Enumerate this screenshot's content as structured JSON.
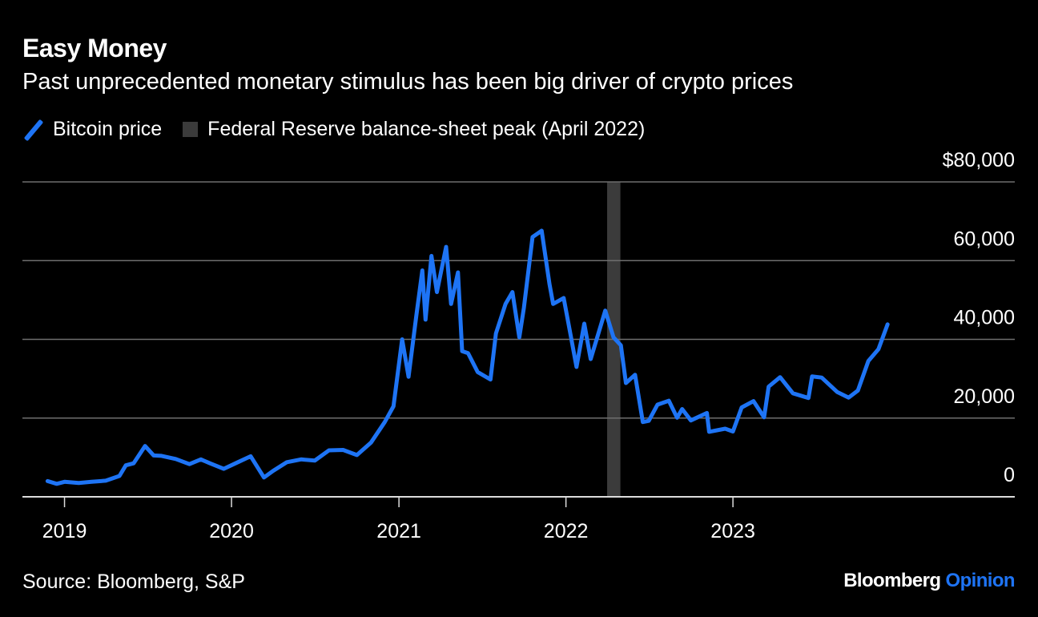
{
  "header": {
    "title": "Easy Money",
    "subtitle": "Past unprecedented monetary stimulus has been big driver of crypto prices"
  },
  "legend": [
    {
      "label": "Bitcoin price",
      "type": "line",
      "color": "#1e74f5"
    },
    {
      "label": "Federal Reserve balance-sheet peak (April 2022)",
      "type": "band",
      "color": "#3b3b3b"
    }
  ],
  "footer": {
    "source": "Source: Bloomberg, S&P",
    "logo_brand": "Bloomberg",
    "logo_product": "Opinion"
  },
  "chart_data": {
    "type": "line",
    "title": "Easy Money",
    "subtitle": "Past unprecedented monetary stimulus has been big driver of crypto prices",
    "ylim": [
      0,
      80000
    ],
    "xlim": [
      "2018-10-01",
      "2024-09-08"
    ],
    "grid": true,
    "legend_position": "top-left",
    "y_ticks": [
      {
        "value": 80000,
        "label": "$80,000"
      },
      {
        "value": 60000,
        "label": "60,000"
      },
      {
        "value": 40000,
        "label": "40,000"
      },
      {
        "value": 20000,
        "label": "20,000"
      },
      {
        "value": 0,
        "label": "0"
      }
    ],
    "x_ticks": [
      {
        "date": "2019-01-01",
        "label": "2019"
      },
      {
        "date": "2020-01-01",
        "label": "2020"
      },
      {
        "date": "2021-01-01",
        "label": "2021"
      },
      {
        "date": "2022-01-01",
        "label": "2022"
      },
      {
        "date": "2023-01-01",
        "label": "2023"
      }
    ],
    "band": {
      "name": "Federal Reserve balance-sheet peak (April 2022)",
      "start": "2022-04-01",
      "end": "2022-04-30",
      "color": "#3b3b3b"
    },
    "series": [
      {
        "name": "Bitcoin price",
        "color": "#1e74f5",
        "points": [
          [
            "2018-11-25",
            4000
          ],
          [
            "2018-12-15",
            3300
          ],
          [
            "2019-01-01",
            3800
          ],
          [
            "2019-02-01",
            3500
          ],
          [
            "2019-03-01",
            3800
          ],
          [
            "2019-04-01",
            4100
          ],
          [
            "2019-05-01",
            5300
          ],
          [
            "2019-05-15",
            8000
          ],
          [
            "2019-06-01",
            8500
          ],
          [
            "2019-06-26",
            12900
          ],
          [
            "2019-07-15",
            10500
          ],
          [
            "2019-08-01",
            10400
          ],
          [
            "2019-09-01",
            9600
          ],
          [
            "2019-10-01",
            8300
          ],
          [
            "2019-10-26",
            9500
          ],
          [
            "2019-11-15",
            8500
          ],
          [
            "2019-12-15",
            7100
          ],
          [
            "2020-01-15",
            8800
          ],
          [
            "2020-02-12",
            10300
          ],
          [
            "2020-03-12",
            4900
          ],
          [
            "2020-04-01",
            6600
          ],
          [
            "2020-05-01",
            8800
          ],
          [
            "2020-06-01",
            9500
          ],
          [
            "2020-07-01",
            9200
          ],
          [
            "2020-08-01",
            11800
          ],
          [
            "2020-09-01",
            11900
          ],
          [
            "2020-10-01",
            10600
          ],
          [
            "2020-11-01",
            13800
          ],
          [
            "2020-12-01",
            19000
          ],
          [
            "2020-12-20",
            23000
          ],
          [
            "2021-01-08",
            40000
          ],
          [
            "2021-01-22",
            30500
          ],
          [
            "2021-02-08",
            46000
          ],
          [
            "2021-02-21",
            57500
          ],
          [
            "2021-02-28",
            45000
          ],
          [
            "2021-03-13",
            61200
          ],
          [
            "2021-03-25",
            52000
          ],
          [
            "2021-04-14",
            63500
          ],
          [
            "2021-04-25",
            49000
          ],
          [
            "2021-05-10",
            57000
          ],
          [
            "2021-05-19",
            37000
          ],
          [
            "2021-06-01",
            36500
          ],
          [
            "2021-06-22",
            31700
          ],
          [
            "2021-07-20",
            29800
          ],
          [
            "2021-08-01",
            41500
          ],
          [
            "2021-08-22",
            49000
          ],
          [
            "2021-09-06",
            52000
          ],
          [
            "2021-09-21",
            40500
          ],
          [
            "2021-10-01",
            48000
          ],
          [
            "2021-10-20",
            66000
          ],
          [
            "2021-11-09",
            67600
          ],
          [
            "2021-11-26",
            54000
          ],
          [
            "2021-12-04",
            49000
          ],
          [
            "2021-12-27",
            50500
          ],
          [
            "2022-01-10",
            41800
          ],
          [
            "2022-01-24",
            33000
          ],
          [
            "2022-02-10",
            44000
          ],
          [
            "2022-02-24",
            35000
          ],
          [
            "2022-03-28",
            47300
          ],
          [
            "2022-04-15",
            40500
          ],
          [
            "2022-05-01",
            38500
          ],
          [
            "2022-05-12",
            28900
          ],
          [
            "2022-06-01",
            31000
          ],
          [
            "2022-06-18",
            19000
          ],
          [
            "2022-07-01",
            19300
          ],
          [
            "2022-07-20",
            23400
          ],
          [
            "2022-08-14",
            24400
          ],
          [
            "2022-09-01",
            20100
          ],
          [
            "2022-09-12",
            22300
          ],
          [
            "2022-10-01",
            19400
          ],
          [
            "2022-11-05",
            21300
          ],
          [
            "2022-11-10",
            16500
          ],
          [
            "2022-12-15",
            17300
          ],
          [
            "2023-01-01",
            16600
          ],
          [
            "2023-01-20",
            22700
          ],
          [
            "2023-02-15",
            24300
          ],
          [
            "2023-03-10",
            20200
          ],
          [
            "2023-03-20",
            28000
          ],
          [
            "2023-04-14",
            30400
          ],
          [
            "2023-05-12",
            26300
          ],
          [
            "2023-06-15",
            25100
          ],
          [
            "2023-06-23",
            30600
          ],
          [
            "2023-07-14",
            30300
          ],
          [
            "2023-08-17",
            26600
          ],
          [
            "2023-09-11",
            25200
          ],
          [
            "2023-10-01",
            27000
          ],
          [
            "2023-10-24",
            34500
          ],
          [
            "2023-11-15",
            37500
          ],
          [
            "2023-12-05",
            43800
          ]
        ]
      }
    ]
  }
}
